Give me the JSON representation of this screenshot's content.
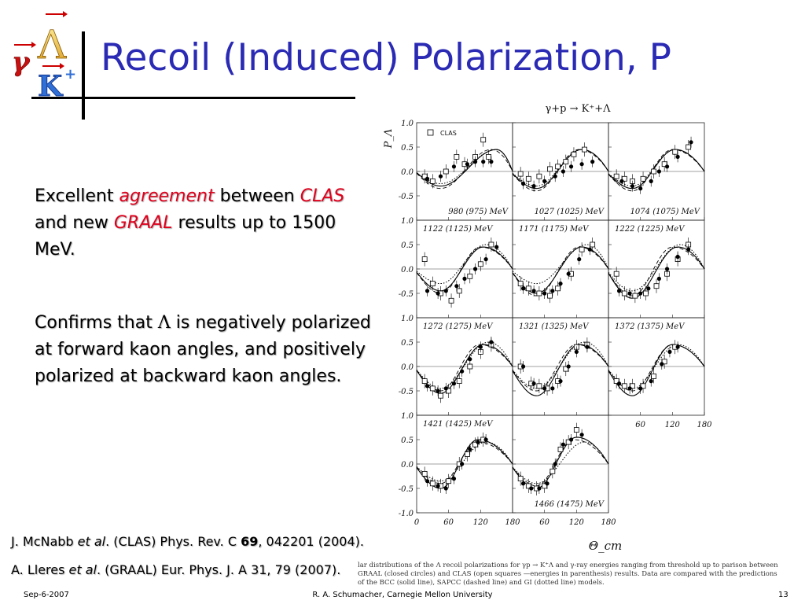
{
  "slide": {
    "title": "Recoil (Induced) Polarization, P",
    "logo": {
      "gamma": "γ",
      "lambda": "Λ",
      "kaon": "K",
      "plus": "+"
    },
    "bullet1": {
      "p1": "Excellent ",
      "p2": "agreement",
      "p3": " between ",
      "p4": "CLAS",
      "p5": " and new ",
      "p6": "GRAAL",
      "p7": " results up to 1500 MeV."
    },
    "bullet2": {
      "p1": "Confirms that ",
      "p2": "Λ",
      "p3": " is negatively polarized at forward kaon angles, and positively polarized at backward kaon angles."
    },
    "ref1": {
      "a": "J. McNabb ",
      "b": "et al",
      "c": ". (CLAS) Phys. Rev. C ",
      "d": "69",
      "e": ", 042201 (2004)."
    },
    "ref2": {
      "a": "A. Lleres ",
      "b": "et al",
      "c": ". (GRAAL) Eur. Phys. J. A 31, 79 (2007)."
    },
    "caption": "lar distributions of the Λ recoil polarizations for γp → K⁺Λ and γ-ray energies ranging from threshold up to parison between GRAAL (closed circles) and CLAS (open squares —energies in parenthesis) results. Data are compared with the predictions of the BCC (solid line), SAPCC (dashed line) and GI (dotted line) models.",
    "footer": {
      "date": "Sep-6-2007",
      "author": "R. A. Schumacher, Carnegie Mellon University",
      "page": "13"
    }
  },
  "chart_data": {
    "type": "scatter",
    "title": "γ+p → K⁺+Λ",
    "ylabel": "P_Λ",
    "xlabel": "Θ_cm",
    "ylim": [
      -1.0,
      1.0
    ],
    "xlim": [
      0,
      180
    ],
    "y_ticks": [
      "1.0",
      "0.5",
      "0.0",
      "-0.5"
    ],
    "y_ticks_bottom": [
      "1.0",
      "0.5",
      "0.0",
      "-0.5",
      "-1.0"
    ],
    "x_ticks": [
      "0",
      "60",
      "120",
      "180"
    ],
    "x_ticks_right": [
      "60",
      "120",
      "180"
    ],
    "legend": "CLAS",
    "legend_placement": "top-left",
    "panels": [
      {
        "label": "980 (975) MeV",
        "label_pos": "bottom",
        "graal": [
          [
            20,
            -0.15
          ],
          [
            45,
            -0.1
          ],
          [
            70,
            0.1
          ],
          [
            95,
            0.15
          ],
          [
            110,
            0.2
          ],
          [
            125,
            0.2
          ],
          [
            140,
            0.2
          ]
        ],
        "clas": [
          [
            15,
            -0.1
          ],
          [
            30,
            -0.2
          ],
          [
            55,
            0.0
          ],
          [
            75,
            0.3
          ],
          [
            90,
            0.15
          ],
          [
            110,
            0.3
          ],
          [
            125,
            0.65
          ],
          [
            135,
            0.3
          ]
        ],
        "theory": {
          "solid": [
            -0.15,
            -0.3,
            150,
            0.0
          ],
          "dashed": [
            -0.25,
            -0.35,
            140,
            0.05
          ],
          "dotted": [
            -0.2,
            -0.25,
            150,
            0.0
          ]
        }
      },
      {
        "label": "1027 (1025) MeV",
        "label_pos": "bottom",
        "graal": [
          [
            20,
            -0.25
          ],
          [
            40,
            -0.3
          ],
          [
            60,
            -0.2
          ],
          [
            80,
            -0.1
          ],
          [
            95,
            0.0
          ],
          [
            110,
            0.1
          ],
          [
            130,
            0.15
          ],
          [
            150,
            0.2
          ]
        ],
        "clas": [
          [
            15,
            -0.05
          ],
          [
            30,
            -0.15
          ],
          [
            50,
            -0.1
          ],
          [
            70,
            0.05
          ],
          [
            85,
            0.1
          ],
          [
            100,
            0.2
          ],
          [
            115,
            0.35
          ],
          [
            135,
            0.45
          ]
        ],
        "theory": {
          "solid": [
            -0.3,
            -0.35,
            130,
            0.1
          ],
          "dashed": [
            -0.35,
            -0.4,
            125,
            0.05
          ],
          "dotted": [
            -0.25,
            -0.3,
            130,
            0.05
          ]
        }
      },
      {
        "label": "1074 (1075) MeV",
        "label_pos": "bottom",
        "graal": [
          [
            25,
            -0.2
          ],
          [
            45,
            -0.3
          ],
          [
            60,
            -0.35
          ],
          [
            80,
            -0.2
          ],
          [
            95,
            0.0
          ],
          [
            110,
            0.1
          ],
          [
            130,
            0.3
          ],
          [
            155,
            0.6
          ]
        ],
        "clas": [
          [
            15,
            -0.1
          ],
          [
            30,
            -0.15
          ],
          [
            45,
            -0.2
          ],
          [
            65,
            -0.15
          ],
          [
            85,
            0.0
          ],
          [
            105,
            0.15
          ],
          [
            125,
            0.4
          ],
          [
            150,
            0.5
          ]
        ],
        "theory": {
          "solid": [
            -0.35,
            -0.35,
            125,
            0.2
          ],
          "dashed": [
            -0.4,
            -0.4,
            120,
            0.15
          ],
          "dotted": [
            -0.3,
            -0.3,
            125,
            0.15
          ]
        }
      },
      {
        "label": "1122 (1125) MeV",
        "label_pos": "top",
        "graal": [
          [
            20,
            -0.45
          ],
          [
            40,
            -0.5
          ],
          [
            55,
            -0.45
          ],
          [
            75,
            -0.35
          ],
          [
            90,
            -0.2
          ],
          [
            110,
            0.0
          ],
          [
            130,
            0.2
          ],
          [
            150,
            0.45
          ]
        ],
        "clas": [
          [
            15,
            0.2
          ],
          [
            30,
            -0.3
          ],
          [
            45,
            -0.5
          ],
          [
            65,
            -0.65
          ],
          [
            80,
            -0.45
          ],
          [
            100,
            -0.15
          ],
          [
            120,
            0.1
          ],
          [
            140,
            0.5
          ]
        ],
        "theory": {
          "solid": [
            -0.45,
            -0.45,
            125,
            0.35
          ],
          "dashed": [
            -0.5,
            -0.5,
            120,
            0.3
          ],
          "dotted": [
            -0.3,
            -0.3,
            130,
            0.5
          ]
        }
      },
      {
        "label": "1171 (1175) MeV",
        "label_pos": "top",
        "graal": [
          [
            20,
            -0.4
          ],
          [
            40,
            -0.45
          ],
          [
            60,
            -0.5
          ],
          [
            75,
            -0.45
          ],
          [
            90,
            -0.3
          ],
          [
            105,
            -0.1
          ],
          [
            125,
            0.2
          ],
          [
            145,
            0.4
          ]
        ],
        "clas": [
          [
            15,
            -0.3
          ],
          [
            30,
            -0.4
          ],
          [
            50,
            -0.5
          ],
          [
            70,
            -0.55
          ],
          [
            85,
            -0.4
          ],
          [
            110,
            -0.1
          ],
          [
            130,
            0.4
          ],
          [
            150,
            0.5
          ]
        ],
        "theory": {
          "solid": [
            -0.5,
            -0.5,
            130,
            0.2
          ],
          "dashed": [
            -0.55,
            -0.55,
            125,
            0.25
          ],
          "dotted": [
            -0.3,
            -0.3,
            140,
            0.5
          ]
        }
      },
      {
        "label": "1222 (1225) MeV",
        "label_pos": "top",
        "graal": [
          [
            20,
            -0.45
          ],
          [
            40,
            -0.5
          ],
          [
            60,
            -0.5
          ],
          [
            75,
            -0.4
          ],
          [
            95,
            -0.2
          ],
          [
            110,
            0.0
          ],
          [
            130,
            0.25
          ],
          [
            150,
            0.4
          ]
        ],
        "clas": [
          [
            15,
            -0.1
          ],
          [
            30,
            -0.5
          ],
          [
            50,
            -0.55
          ],
          [
            70,
            -0.5
          ],
          [
            90,
            -0.35
          ],
          [
            110,
            -0.1
          ],
          [
            130,
            0.2
          ],
          [
            150,
            0.5
          ]
        ],
        "theory": {
          "solid": [
            -0.6,
            -0.6,
            130,
            0.4
          ],
          "dashed": [
            -0.55,
            -0.55,
            120,
            0.35
          ],
          "dotted": [
            -0.45,
            -0.45,
            135,
            0.5
          ]
        }
      },
      {
        "label": "1272 (1275) MeV",
        "label_pos": "top",
        "graal": [
          [
            20,
            -0.4
          ],
          [
            40,
            -0.5
          ],
          [
            55,
            -0.45
          ],
          [
            70,
            -0.35
          ],
          [
            85,
            -0.1
          ],
          [
            100,
            0.15
          ],
          [
            120,
            0.4
          ],
          [
            140,
            0.5
          ]
        ],
        "clas": [
          [
            15,
            -0.3
          ],
          [
            30,
            -0.45
          ],
          [
            45,
            -0.6
          ],
          [
            60,
            -0.5
          ],
          [
            80,
            -0.3
          ],
          [
            100,
            0.0
          ],
          [
            120,
            0.3
          ],
          [
            140,
            0.45
          ]
        ],
        "theory": {
          "solid": [
            -0.55,
            -0.55,
            125,
            0.45
          ],
          "dashed": [
            -0.5,
            -0.5,
            118,
            0.45
          ],
          "dotted": [
            -0.45,
            -0.45,
            135,
            0.5
          ]
        }
      },
      {
        "label": "1321 (1325) MeV",
        "label_pos": "top",
        "graal": [
          [
            20,
            0.0
          ],
          [
            40,
            -0.35
          ],
          [
            60,
            -0.45
          ],
          [
            75,
            -0.45
          ],
          [
            90,
            -0.3
          ],
          [
            105,
            0.0
          ],
          [
            120,
            0.3
          ],
          [
            140,
            0.4
          ]
        ],
        "clas": [
          [
            15,
            0.0
          ],
          [
            35,
            -0.35
          ],
          [
            50,
            -0.4
          ],
          [
            65,
            -0.45
          ],
          [
            85,
            -0.3
          ],
          [
            100,
            -0.05
          ],
          [
            120,
            0.4
          ],
          [
            140,
            0.45
          ]
        ],
        "theory": {
          "solid": [
            -0.6,
            -0.6,
            125,
            0.45
          ],
          "dashed": [
            -0.5,
            -0.5,
            120,
            0.45
          ],
          "dotted": [
            -0.45,
            -0.45,
            135,
            0.5
          ]
        }
      },
      {
        "label": "1372 (1375) MeV",
        "label_pos": "top",
        "graal": [
          [
            20,
            -0.35
          ],
          [
            40,
            -0.45
          ],
          [
            60,
            -0.45
          ],
          [
            80,
            -0.3
          ],
          [
            100,
            0.05
          ],
          [
            115,
            0.3
          ],
          [
            130,
            0.4
          ]
        ],
        "clas": [
          [
            15,
            -0.3
          ],
          [
            30,
            -0.4
          ],
          [
            45,
            -0.4
          ],
          [
            65,
            -0.4
          ],
          [
            85,
            -0.2
          ],
          [
            105,
            0.1
          ],
          [
            125,
            0.4
          ]
        ],
        "theory": {
          "solid": [
            -0.6,
            -0.6,
            120,
            0.45
          ],
          "dashed": [
            -0.5,
            -0.5,
            120,
            0.4
          ],
          "dotted": [
            -0.45,
            -0.45,
            130,
            0.45
          ]
        }
      },
      {
        "label": "1421 (1425) MeV",
        "label_pos": "top",
        "graal": [
          [
            20,
            -0.35
          ],
          [
            40,
            -0.45
          ],
          [
            55,
            -0.5
          ],
          [
            70,
            -0.3
          ],
          [
            85,
            0.0
          ],
          [
            100,
            0.3
          ],
          [
            115,
            0.45
          ],
          [
            130,
            0.5
          ]
        ],
        "clas": [
          [
            15,
            -0.2
          ],
          [
            30,
            -0.4
          ],
          [
            45,
            -0.45
          ],
          [
            60,
            -0.35
          ],
          [
            80,
            0.0
          ],
          [
            95,
            0.2
          ],
          [
            110,
            0.4
          ],
          [
            125,
            0.5
          ]
        ],
        "theory": {
          "solid": [
            -0.5,
            -0.5,
            115,
            0.5
          ],
          "dashed": [
            -0.4,
            -0.4,
            115,
            0.45
          ],
          "dotted": [
            -0.35,
            -0.35,
            130,
            0.4
          ]
        }
      },
      {
        "label": "1466 (1475) MeV",
        "label_pos": "bottom",
        "graal": [
          [
            20,
            -0.4
          ],
          [
            35,
            -0.5
          ],
          [
            50,
            -0.5
          ],
          [
            65,
            -0.4
          ],
          [
            80,
            0.0
          ],
          [
            95,
            0.4
          ],
          [
            110,
            0.5
          ],
          [
            130,
            0.6
          ]
        ],
        "clas": [
          [
            15,
            -0.3
          ],
          [
            30,
            -0.45
          ],
          [
            45,
            -0.5
          ],
          [
            60,
            -0.45
          ],
          [
            75,
            -0.15
          ],
          [
            90,
            0.3
          ],
          [
            105,
            0.45
          ],
          [
            120,
            0.7
          ]
        ],
        "theory": {
          "solid": [
            -0.5,
            -0.5,
            120,
            0.55
          ],
          "dashed": [
            -0.45,
            -0.45,
            115,
            0.5
          ],
          "dotted": [
            -0.4,
            -0.4,
            135,
            0.35
          ]
        }
      }
    ]
  }
}
